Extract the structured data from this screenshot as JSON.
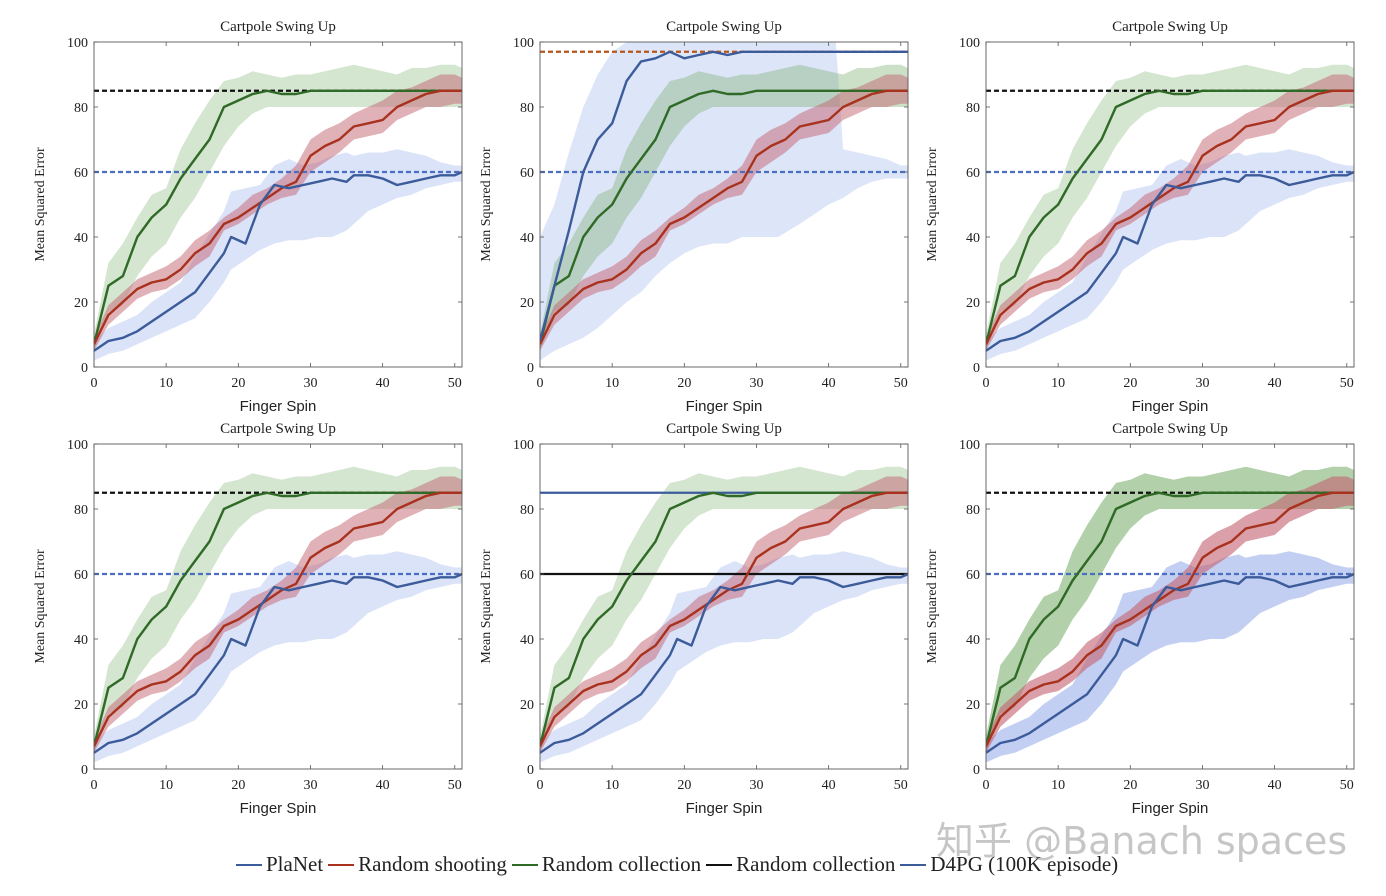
{
  "legend": [
    {
      "label": "PlaNet",
      "color": "#3b5b9a"
    },
    {
      "label": "Random shooting",
      "color": "#a8321e"
    },
    {
      "label": "Random collection",
      "color": "#2f6a26"
    },
    {
      "label": "Random collection",
      "color": "#111111"
    },
    {
      "label": "D4PG (100K episode)",
      "color": "#3b5b9a"
    }
  ],
  "watermark": "知乎 @Banach spaces",
  "colors": {
    "blue_line": "#3b5b9a",
    "blue_band": "#8fa8e8",
    "red_line": "#a8321e",
    "red_band": "#c46472",
    "green_line": "#2f6a26",
    "green_band": "#7aae6c",
    "black_ref": "#111111",
    "blue_ref": "#4a6fc0",
    "orange_ref": "#b8541a"
  },
  "chart_data": [
    {
      "type": "line",
      "title": "Cartpole Swing Up",
      "xlabel": "Finger Spin",
      "ylabel": "Mean Squared Error",
      "xlim": [
        0,
        51
      ],
      "ylim": [
        0,
        100
      ],
      "xticks": [
        0,
        10,
        20,
        30,
        40,
        50
      ],
      "yticks": [
        0,
        20,
        40,
        60,
        80,
        100
      ],
      "variant": "default",
      "planet_series": "planet",
      "band_opacity": {
        "blue": 0.32,
        "green": 0.32,
        "red": 0.5
      },
      "reference_lines": [
        {
          "y": 85,
          "style": "dashed",
          "color": "#111111"
        },
        {
          "y": 60,
          "style": "dashed",
          "color": "#4a6fc0"
        }
      ]
    },
    {
      "type": "line",
      "title": "Cartpole Swing Up",
      "xlabel": "Finger Spin",
      "ylabel": "Mean Squared Error",
      "xlim": [
        0,
        51
      ],
      "ylim": [
        0,
        100
      ],
      "xticks": [
        0,
        10,
        20,
        30,
        40,
        50
      ],
      "yticks": [
        0,
        20,
        40,
        60,
        80,
        100
      ],
      "variant": "fast",
      "planet_series": "planet_fast",
      "band_opacity": {
        "blue": 0.3,
        "green": 0.38,
        "red": 0.5
      },
      "reference_lines": [
        {
          "y": 97,
          "style": "dashed",
          "color": "#b8541a"
        },
        {
          "y": 60,
          "style": "dashed",
          "color": "#4a6fc0"
        }
      ]
    },
    {
      "type": "line",
      "title": "Cartpole Swing Up",
      "xlabel": "Finger Spin",
      "ylabel": "Mean Squared Error",
      "xlim": [
        0,
        51
      ],
      "ylim": [
        0,
        100
      ],
      "xticks": [
        0,
        10,
        20,
        30,
        40,
        50
      ],
      "yticks": [
        0,
        20,
        40,
        60,
        80,
        100
      ],
      "variant": "default",
      "planet_series": "planet",
      "band_opacity": {
        "blue": 0.32,
        "green": 0.32,
        "red": 0.5
      },
      "reference_lines": [
        {
          "y": 85,
          "style": "dashed",
          "color": "#111111"
        },
        {
          "y": 60,
          "style": "dashed",
          "color": "#4a6fc0"
        }
      ]
    },
    {
      "type": "line",
      "title": "Cartpole Swing Up",
      "xlabel": "Finger Spin",
      "ylabel": "Mean Squared Error",
      "xlim": [
        0,
        51
      ],
      "ylim": [
        0,
        100
      ],
      "xticks": [
        0,
        10,
        20,
        30,
        40,
        50
      ],
      "yticks": [
        0,
        20,
        40,
        60,
        80,
        100
      ],
      "variant": "default",
      "planet_series": "planet",
      "band_opacity": {
        "blue": 0.32,
        "green": 0.32,
        "red": 0.5
      },
      "reference_lines": [
        {
          "y": 85,
          "style": "dashed",
          "color": "#111111"
        },
        {
          "y": 60,
          "style": "dashed",
          "color": "#4a6fc0"
        }
      ]
    },
    {
      "type": "line",
      "title": "Cartpole Swing Up",
      "xlabel": "Finger Spin",
      "ylabel": "Mean Squared Error",
      "xlim": [
        0,
        51
      ],
      "ylim": [
        0,
        100
      ],
      "xticks": [
        0,
        10,
        20,
        30,
        40,
        50
      ],
      "yticks": [
        0,
        20,
        40,
        60,
        80,
        100
      ],
      "variant": "solid_refs",
      "planet_series": "planet",
      "band_opacity": {
        "blue": 0.32,
        "green": 0.32,
        "red": 0.5
      },
      "reference_lines": [
        {
          "y": 85,
          "style": "solid",
          "color": "#3b5b9a"
        },
        {
          "y": 60,
          "style": "solid",
          "color": "#111111"
        }
      ]
    },
    {
      "type": "line",
      "title": "Cartpole Swing Up",
      "xlabel": "Finger Spin",
      "ylabel": "Mean Squared Error",
      "xlim": [
        0,
        51
      ],
      "ylim": [
        0,
        100
      ],
      "xticks": [
        0,
        10,
        20,
        30,
        40,
        50
      ],
      "yticks": [
        0,
        20,
        40,
        60,
        80,
        100
      ],
      "variant": "dark_bands",
      "planet_series": "planet",
      "band_opacity": {
        "blue": 0.55,
        "green": 0.58,
        "red": 0.62
      },
      "reference_lines": [
        {
          "y": 85,
          "style": "dashed",
          "color": "#111111"
        },
        {
          "y": 60,
          "style": "dashed",
          "color": "#4a6fc0"
        }
      ]
    }
  ],
  "series": {
    "green": {
      "x": [
        0,
        2,
        4,
        6,
        8,
        10,
        12,
        14,
        16,
        18,
        20,
        22,
        24,
        26,
        28,
        30,
        32,
        34,
        36,
        38,
        40,
        42,
        44,
        46,
        48,
        50,
        51
      ],
      "mean": [
        7,
        25,
        28,
        40,
        46,
        50,
        58,
        64,
        70,
        80,
        82,
        84,
        85,
        84,
        84,
        85,
        85,
        85,
        85,
        85,
        85,
        85,
        85,
        85,
        85,
        85,
        85
      ],
      "upper": [
        10,
        32,
        38,
        46,
        53,
        55,
        67,
        75,
        82,
        88,
        89,
        91,
        90,
        89,
        90,
        90,
        91,
        92,
        93,
        92,
        91,
        90,
        92,
        92,
        93,
        93,
        92
      ],
      "lower": [
        5,
        17,
        19,
        28,
        34,
        38,
        46,
        52,
        60,
        68,
        74,
        78,
        80,
        80,
        80,
        80,
        80,
        80,
        80,
        80,
        80,
        80,
        80,
        80,
        80,
        80,
        80
      ]
    },
    "red": {
      "x": [
        0,
        2,
        4,
        6,
        8,
        10,
        12,
        14,
        16,
        18,
        20,
        22,
        24,
        26,
        28,
        30,
        32,
        34,
        36,
        38,
        40,
        42,
        44,
        46,
        48,
        50,
        51
      ],
      "mean": [
        7,
        16,
        20,
        24,
        26,
        27,
        30,
        35,
        38,
        44,
        46,
        49,
        52,
        55,
        57,
        65,
        68,
        70,
        74,
        75,
        76,
        80,
        82,
        84,
        85,
        85,
        85
      ],
      "upper": [
        9,
        19,
        23,
        27,
        29,
        31,
        34,
        39,
        42,
        46,
        49,
        53,
        55,
        58,
        62,
        70,
        73,
        75,
        78,
        80,
        82,
        85,
        86,
        88,
        90,
        90,
        89
      ],
      "lower": [
        5,
        13,
        17,
        21,
        23,
        24,
        27,
        31,
        34,
        42,
        44,
        47,
        50,
        52,
        53,
        60,
        63,
        66,
        70,
        71,
        72,
        76,
        78,
        80,
        80,
        81,
        81
      ]
    },
    "planet": {
      "x": [
        0,
        2,
        4,
        6,
        8,
        10,
        12,
        14,
        16,
        18,
        19,
        21,
        23,
        25,
        27,
        29,
        31,
        33,
        35,
        36,
        38,
        40,
        42,
        44,
        46,
        48,
        50,
        51
      ],
      "mean": [
        5,
        8,
        9,
        11,
        14,
        17,
        20,
        23,
        29,
        35,
        40,
        38,
        50,
        56,
        55,
        56,
        57,
        58,
        57,
        59,
        59,
        58,
        56,
        57,
        58,
        59,
        59,
        60
      ],
      "upper": [
        8,
        12,
        14,
        16,
        20,
        23,
        26,
        34,
        41,
        48,
        54,
        55,
        56,
        62,
        64,
        62,
        63,
        65,
        66,
        65,
        66,
        66,
        67,
        66,
        65,
        63,
        62,
        62
      ],
      "lower": [
        2,
        4,
        5,
        7,
        9,
        11,
        13,
        15,
        20,
        26,
        30,
        33,
        36,
        38,
        39,
        39,
        40,
        40,
        42,
        44,
        48,
        50,
        52,
        53,
        55,
        56,
        57,
        57
      ]
    },
    "planet_fast": {
      "x": [
        0,
        2,
        4,
        6,
        8,
        10,
        12,
        14,
        16,
        18,
        20,
        22,
        24,
        26,
        28,
        30,
        33,
        36,
        40,
        42,
        44,
        46,
        48,
        50,
        51
      ],
      "mean": [
        8,
        25,
        42,
        60,
        70,
        75,
        88,
        94,
        95,
        97,
        95,
        96,
        97,
        96,
        97,
        97,
        97,
        97,
        97,
        97,
        97,
        97,
        97,
        97,
        97
      ],
      "upper": [
        40,
        50,
        66,
        80,
        90,
        97,
        100,
        100,
        100,
        100,
        100,
        100,
        100,
        100,
        100,
        100,
        100,
        100,
        100,
        100,
        100,
        100,
        100,
        100,
        100
      ],
      "lower": [
        2,
        5,
        7,
        9,
        12,
        16,
        20,
        23,
        28,
        32,
        35,
        37,
        38,
        38,
        40,
        40,
        40,
        44,
        50,
        52,
        55,
        57,
        58,
        58,
        58
      ],
      "upper_tail": [
        [
          42,
          67
        ],
        [
          44,
          66
        ],
        [
          46,
          65
        ],
        [
          48,
          64
        ],
        [
          50,
          62
        ],
        [
          51,
          62
        ]
      ]
    }
  }
}
